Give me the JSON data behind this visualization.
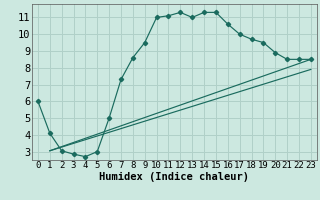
{
  "xlabel": "Humidex (Indice chaleur)",
  "bg_color": "#cce8e0",
  "grid_color": "#b0d0c8",
  "line_color": "#1a6b5e",
  "xlim": [
    -0.5,
    23.5
  ],
  "ylim": [
    2.5,
    11.8
  ],
  "xticks": [
    0,
    1,
    2,
    3,
    4,
    5,
    6,
    7,
    8,
    9,
    10,
    11,
    12,
    13,
    14,
    15,
    16,
    17,
    18,
    19,
    20,
    21,
    22,
    23
  ],
  "yticks": [
    3,
    4,
    5,
    6,
    7,
    8,
    9,
    10,
    11
  ],
  "curve1_x": [
    0,
    1,
    2,
    3,
    4,
    5,
    6,
    7,
    8,
    9,
    10,
    11,
    12,
    13,
    14,
    15,
    16,
    17,
    18,
    19,
    20,
    21,
    22,
    23
  ],
  "curve1_y": [
    6.0,
    4.1,
    3.05,
    2.85,
    2.7,
    3.0,
    5.0,
    7.3,
    8.6,
    9.5,
    11.0,
    11.1,
    11.3,
    11.0,
    11.3,
    11.3,
    10.6,
    10.0,
    9.7,
    9.5,
    8.9,
    8.5,
    8.5,
    8.5
  ],
  "curve2_x": [
    1,
    23
  ],
  "curve2_y": [
    3.05,
    8.5
  ],
  "curve3_x": [
    1,
    23
  ],
  "curve3_y": [
    3.05,
    7.9
  ],
  "xlabel_fontsize": 7.5,
  "tick_fontsize": 6.5,
  "ytick_fontsize": 7.5
}
